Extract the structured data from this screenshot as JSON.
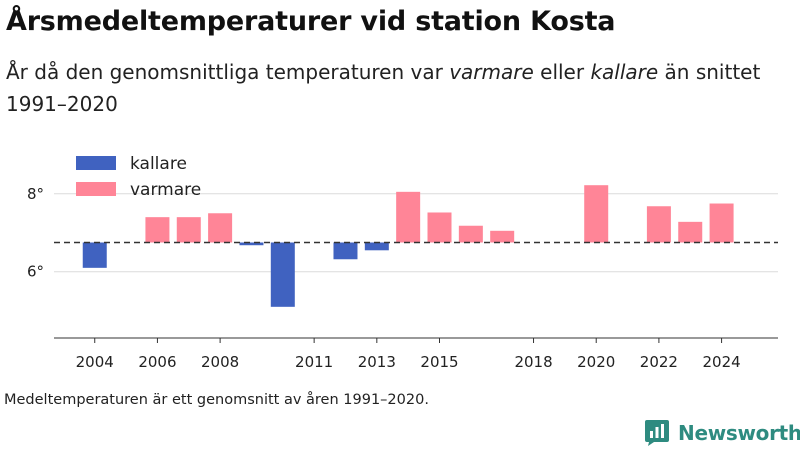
{
  "title": "Årsmedeltemperaturer vid station Kosta",
  "subtitle": {
    "part1": "År då den genomsnittliga temperaturen var ",
    "warm_word": "varmare",
    "part2": " eller ",
    "cold_word": "kallare",
    "part3": " än snittet 1991–2020"
  },
  "note": "Medeltemperaturen är ett genomsnitt av åren 1991–2020.",
  "brand": {
    "name": "Newsworthy",
    "icon": "newsworthy-logo-icon",
    "color": "#2e8b80"
  },
  "colors": {
    "kallare": "#4062c0",
    "varmare": "#ff8597",
    "baseline": "#333333",
    "grid": "#dcdcdc"
  },
  "chart_data": {
    "type": "bar",
    "title": "Årsmedeltemperaturer vid station Kosta",
    "baseline": 6.75,
    "baseline_style": "dashed",
    "ylim": [
      4.3,
      9.2
    ],
    "yticks": [
      {
        "value": 6,
        "label": "6°"
      },
      {
        "value": 8,
        "label": "8°"
      }
    ],
    "xlim": [
      2002.7,
      2025.8
    ],
    "xticks": [
      2004,
      2006,
      2008,
      2011,
      2013,
      2015,
      2018,
      2020,
      2022,
      2024
    ],
    "grid": true,
    "legend": {
      "position": "top-left",
      "entries": [
        {
          "key": "kallare",
          "label": "kallare"
        },
        {
          "key": "varmare",
          "label": "varmare"
        }
      ]
    },
    "x": [
      2004,
      2006,
      2007,
      2008,
      2009,
      2010,
      2012,
      2013,
      2014,
      2015,
      2016,
      2017,
      2020,
      2022,
      2023,
      2024
    ],
    "values": [
      6.1,
      7.4,
      7.4,
      7.5,
      6.68,
      5.1,
      6.32,
      6.55,
      8.05,
      7.52,
      7.18,
      7.05,
      8.22,
      7.68,
      7.28,
      7.75
    ]
  }
}
